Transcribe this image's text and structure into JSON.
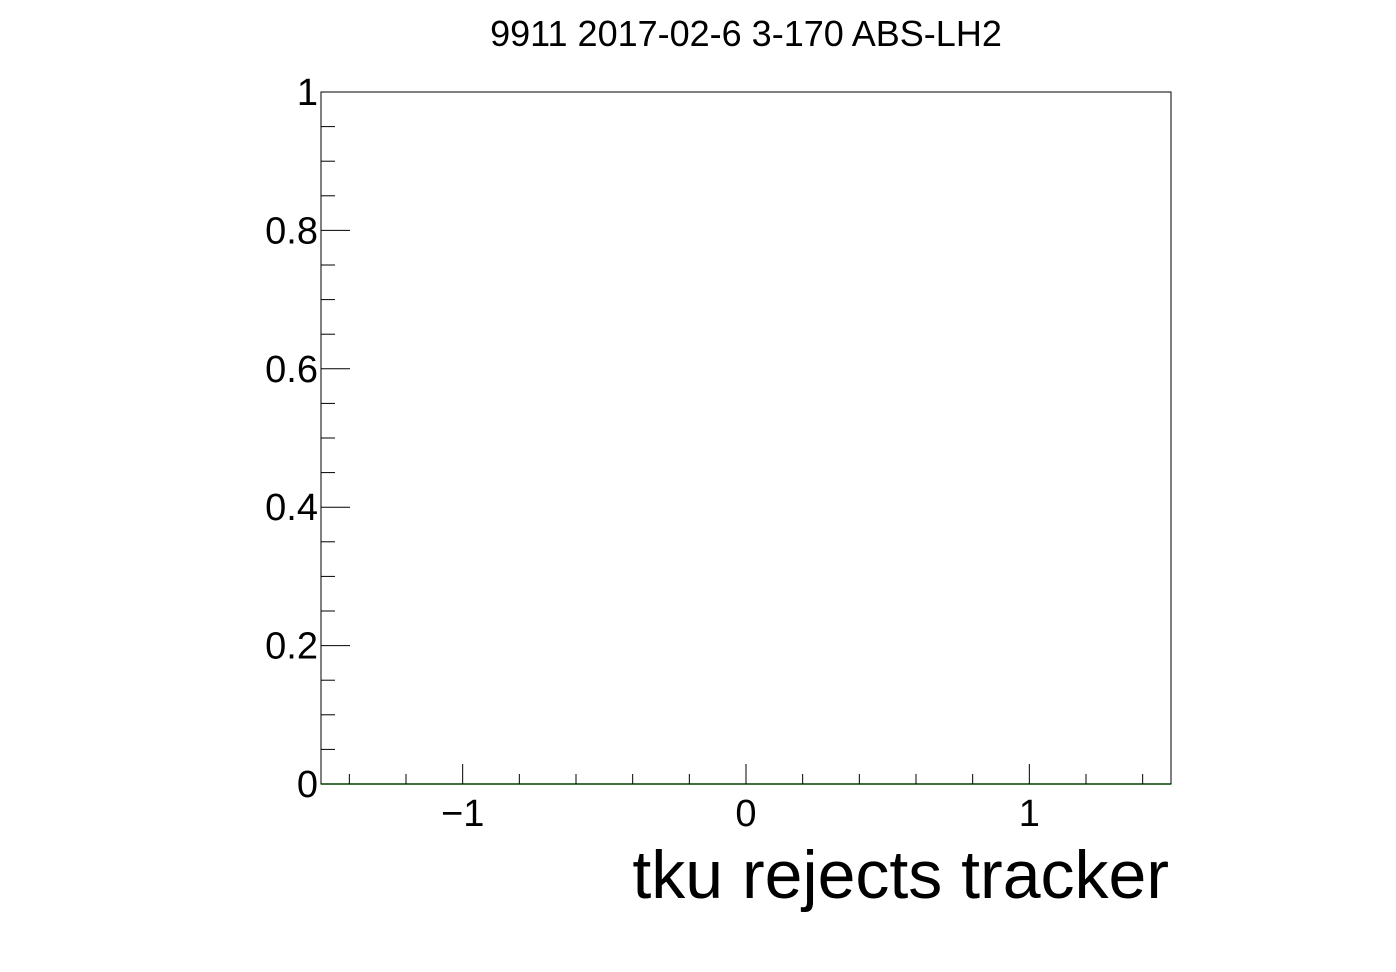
{
  "chart_data": {
    "type": "line",
    "title": "9911 2017-02-6 3-170 ABS-LH2",
    "xlabel": "tku rejects tracker",
    "ylabel": "",
    "xlim": [
      -1.5,
      1.5
    ],
    "ylim": [
      0,
      1
    ],
    "x_ticks": [
      {
        "value": -1,
        "label": "−1"
      },
      {
        "value": 0,
        "label": "0"
      },
      {
        "value": 1,
        "label": "1"
      }
    ],
    "y_ticks": [
      {
        "value": 0,
        "label": "0"
      },
      {
        "value": 0.2,
        "label": "0.2"
      },
      {
        "value": 0.4,
        "label": "0.4"
      },
      {
        "value": 0.6,
        "label": "0.6"
      },
      {
        "value": 0.8,
        "label": "0.8"
      },
      {
        "value": 1,
        "label": "1"
      }
    ],
    "series": [
      {
        "color": "#00cc00",
        "x": [
          -1.5,
          1.5
        ],
        "y": [
          0,
          0
        ]
      }
    ],
    "grid": false,
    "legend": "none"
  }
}
